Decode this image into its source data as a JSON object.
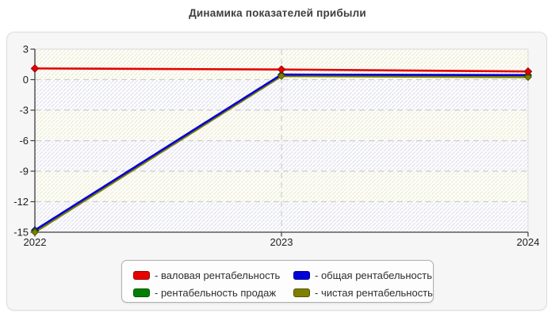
{
  "title": "Динамика показателей прибыли",
  "chart_data": {
    "type": "line",
    "title": "Динамика показателей прибыли",
    "categories": [
      "2022",
      "2023",
      "2024"
    ],
    "series": [
      {
        "name": "валовая рентабельность",
        "legend_label": "- валовая рентабельность",
        "color": "#e60000",
        "marker_border": "#990000",
        "values": [
          1.1,
          1.0,
          0.8
        ]
      },
      {
        "name": "общая рентабельность",
        "legend_label": "- общая рентабельность",
        "color": "#0000d9",
        "marker_border": "#000099",
        "values": [
          -14.8,
          0.5,
          0.45
        ]
      },
      {
        "name": "рентабельность продаж",
        "legend_label": "- рентабельность продаж",
        "color": "#008000",
        "marker_border": "#005500",
        "values": [
          -14.9,
          0.45,
          0.4
        ]
      },
      {
        "name": "чистая рентабельность",
        "legend_label": "- чистая рентабельность",
        "color": "#7f7f00",
        "marker_border": "#555500",
        "values": [
          -15.0,
          0.35,
          0.25
        ]
      }
    ],
    "yticks": [
      3,
      0,
      -3,
      -6,
      -9,
      -12,
      -15
    ],
    "ylim": [
      -15,
      3
    ],
    "xlabel": "",
    "ylabel": "",
    "grid": {
      "horizontal": "dashed",
      "vertical_dashed_at": "2023"
    },
    "legend_position": "bottom-center",
    "marker": "diamond",
    "style": {
      "band_hatch_colors": [
        "#efefda",
        "#e6e6f2"
      ],
      "grid_color": "#cdcdcd",
      "axis_color": "#3c3c3c",
      "plot_border_color": "#d9d9d9",
      "card_background": "#f6f6f6"
    }
  }
}
